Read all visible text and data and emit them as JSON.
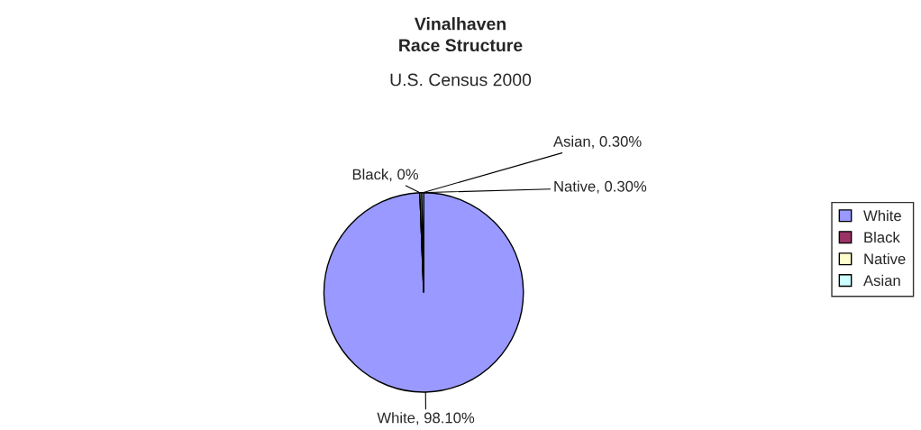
{
  "chart_data": {
    "type": "pie",
    "title": "Vinalhaven\nRace Structure",
    "subtitle": "U.S. Census 2000",
    "categories": [
      "White",
      "Black",
      "Native",
      "Asian"
    ],
    "values": [
      98.1,
      0,
      0.3,
      0.3
    ],
    "colors": [
      "#9999ff",
      "#993366",
      "#ffffcc",
      "#ccffff"
    ],
    "value_labels": [
      "White, 98.10%",
      "Black, 0%",
      "Native, 0.30%",
      "Asian, 0.30%"
    ],
    "legend": "right"
  }
}
